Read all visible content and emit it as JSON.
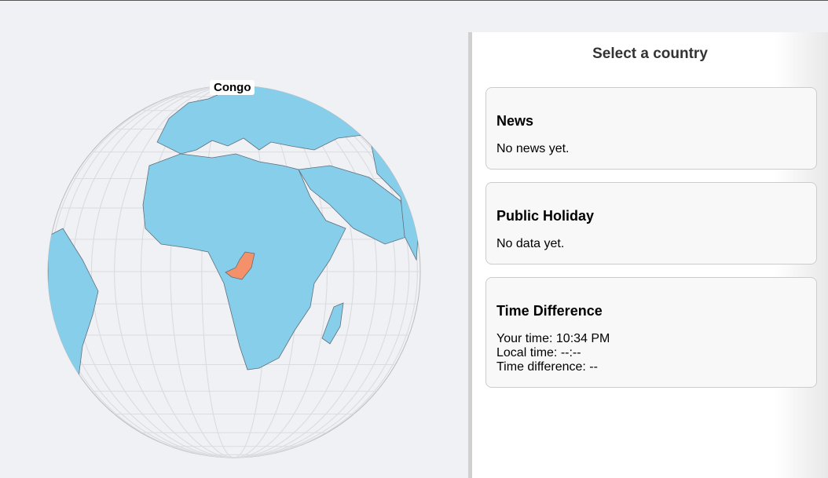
{
  "globe": {
    "hover_label": "Congo",
    "colors": {
      "ocean": "#f0f1f5",
      "land": "#87ceeb",
      "border": "#5f6f7a",
      "highlight": "#f4906a",
      "graticule": "#d8d8dc"
    }
  },
  "panel": {
    "title": "Select a country",
    "news": {
      "title": "News",
      "body": "No news yet."
    },
    "holiday": {
      "title": "Public Holiday",
      "body": "No data yet."
    },
    "time": {
      "title": "Time Difference",
      "your_time": "Your time: 10:34 PM",
      "local_time": "Local time: --:--",
      "difference": "Time difference: --"
    }
  }
}
